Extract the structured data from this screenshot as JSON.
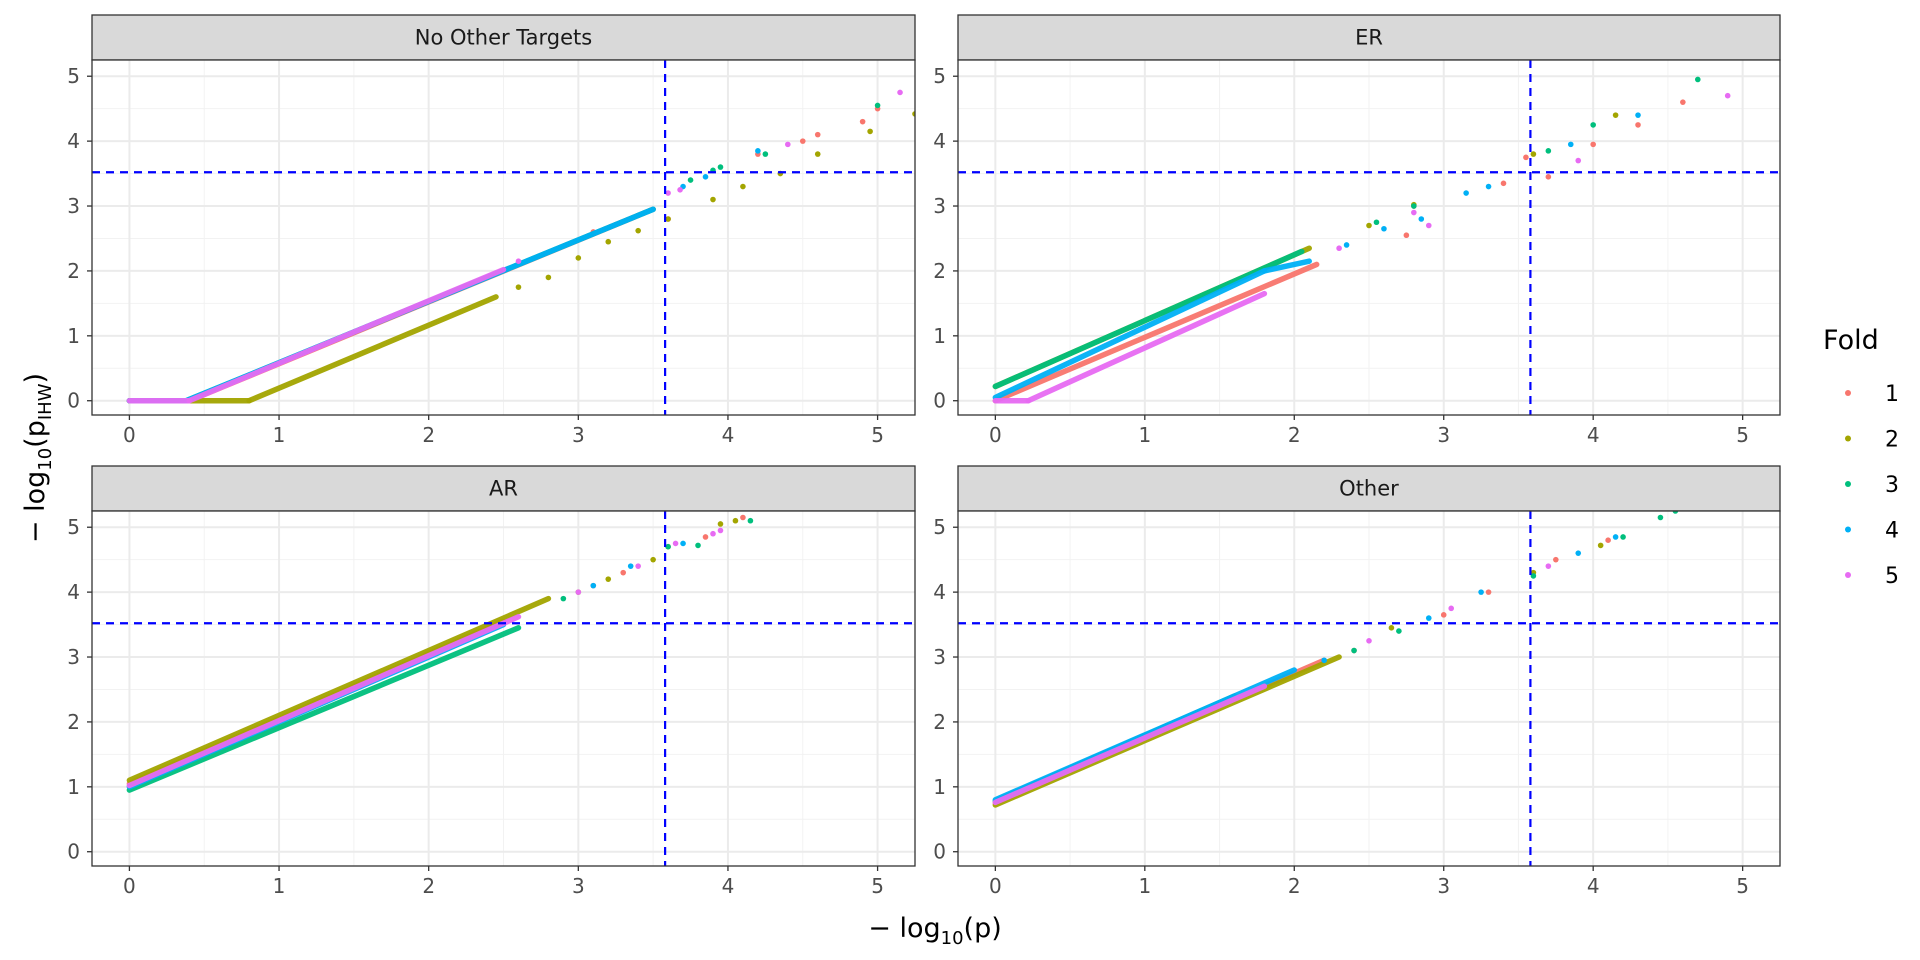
{
  "figure": {
    "xlabel_prefix": "− log",
    "xlabel_sub": "10",
    "xlabel_arg": "(p)",
    "ylabel_prefix": "− log",
    "ylabel_sub": "10",
    "ylabel_arg_open": "(p",
    "ylabel_arg_sub": "IHW",
    "ylabel_arg_close": ")"
  },
  "legend": {
    "title": "Fold",
    "items": [
      {
        "label": "1",
        "color": "#F8766D"
      },
      {
        "label": "2",
        "color": "#A3A500"
      },
      {
        "label": "3",
        "color": "#00BF7D"
      },
      {
        "label": "4",
        "color": "#00B0F6"
      },
      {
        "label": "5",
        "color": "#E76BF3"
      }
    ]
  },
  "reference_lines": {
    "color": "#0000FF",
    "style": "dashed",
    "vline_x": 3.58,
    "hline_y": 3.52
  },
  "chart_data": [
    {
      "type": "scatter",
      "title": "No Other Targets",
      "x_ticks": [
        "0",
        "1",
        "2",
        "3",
        "4",
        "5"
      ],
      "y_ticks": [
        "0",
        "1",
        "2",
        "3",
        "4",
        "5"
      ],
      "xlim": [
        -0.25,
        5.25
      ],
      "ylim": [
        -0.22,
        5.25
      ],
      "grid": true,
      "series": [
        {
          "name": "1",
          "segments": [
            [
              0,
              0,
              0.4,
              0
            ],
            [
              0.4,
              0,
              3.5,
              2.95
            ]
          ],
          "scatter": [
            [
              3.1,
              2.6
            ],
            [
              3.6,
              2.8
            ],
            [
              4.2,
              3.8
            ],
            [
              4.5,
              4.0
            ],
            [
              4.6,
              4.1
            ],
            [
              4.9,
              4.3
            ],
            [
              5.0,
              4.5
            ]
          ]
        },
        {
          "name": "2",
          "segments": [
            [
              0,
              0,
              0.8,
              0
            ],
            [
              0.8,
              0,
              2.45,
              1.6
            ]
          ],
          "scatter": [
            [
              2.6,
              1.75
            ],
            [
              2.8,
              1.9
            ],
            [
              3.0,
              2.2
            ],
            [
              3.2,
              2.45
            ],
            [
              3.4,
              2.62
            ],
            [
              3.6,
              2.8
            ],
            [
              3.9,
              3.1
            ],
            [
              4.1,
              3.3
            ],
            [
              4.35,
              3.5
            ],
            [
              4.6,
              3.8
            ],
            [
              4.95,
              4.15
            ],
            [
              5.25,
              4.42
            ]
          ]
        },
        {
          "name": "3",
          "segments": [
            [
              0,
              0,
              0.38,
              0
            ],
            [
              0.38,
              0,
              3.5,
              2.95
            ]
          ],
          "scatter": [
            [
              3.75,
              3.4
            ],
            [
              3.9,
              3.55
            ],
            [
              3.95,
              3.6
            ],
            [
              4.25,
              3.8
            ],
            [
              5.0,
              4.55
            ]
          ]
        },
        {
          "name": "4",
          "segments": [
            [
              0,
              0,
              0.38,
              0
            ],
            [
              0.38,
              0,
              3.5,
              2.95
            ]
          ],
          "scatter": [
            [
              3.7,
              3.3
            ],
            [
              3.85,
              3.45
            ],
            [
              4.2,
              3.85
            ]
          ]
        },
        {
          "name": "5",
          "segments": [
            [
              0,
              0,
              0.4,
              0
            ],
            [
              0.4,
              0,
              2.5,
              2.02
            ]
          ],
          "scatter": [
            [
              2.6,
              2.15
            ],
            [
              3.6,
              3.2
            ],
            [
              3.68,
              3.25
            ],
            [
              4.4,
              3.95
            ],
            [
              5.15,
              4.75
            ]
          ]
        }
      ]
    },
    {
      "type": "scatter",
      "title": "ER",
      "x_ticks": [
        "0",
        "1",
        "2",
        "3",
        "4",
        "5"
      ],
      "y_ticks": [
        "0",
        "1",
        "2",
        "3",
        "4",
        "5"
      ],
      "xlim": [
        -0.25,
        5.25
      ],
      "ylim": [
        -0.22,
        5.25
      ],
      "grid": true,
      "series": [
        {
          "name": "1",
          "segments": [
            [
              0,
              0,
              2.15,
              2.1
            ]
          ],
          "scatter": [
            [
              2.8,
              3.0
            ],
            [
              2.75,
              2.55
            ],
            [
              3.4,
              3.35
            ],
            [
              3.55,
              3.75
            ],
            [
              3.7,
              3.45
            ],
            [
              4.0,
              3.95
            ],
            [
              4.3,
              4.25
            ],
            [
              4.6,
              4.6
            ]
          ]
        },
        {
          "name": "2",
          "segments": [
            [
              0,
              0.22,
              2.1,
              2.35
            ]
          ],
          "scatter": [
            [
              2.5,
              2.7
            ],
            [
              2.8,
              3.02
            ],
            [
              3.6,
              3.8
            ],
            [
              4.15,
              4.4
            ]
          ]
        },
        {
          "name": "3",
          "segments": [
            [
              0,
              0.22,
              2.05,
              2.3
            ]
          ],
          "scatter": [
            [
              2.55,
              2.75
            ],
            [
              2.8,
              3.0
            ],
            [
              3.7,
              3.85
            ],
            [
              4.0,
              4.25
            ],
            [
              4.7,
              4.95
            ]
          ]
        },
        {
          "name": "4",
          "segments": [
            [
              0,
              0.05,
              1.8,
              2.0
            ],
            [
              1.8,
              2.0,
              2.1,
              2.15
            ]
          ],
          "scatter": [
            [
              2.35,
              2.4
            ],
            [
              2.6,
              2.65
            ],
            [
              2.85,
              2.8
            ],
            [
              3.15,
              3.2
            ],
            [
              3.3,
              3.3
            ],
            [
              3.85,
              3.95
            ],
            [
              4.3,
              4.4
            ]
          ]
        },
        {
          "name": "5",
          "segments": [
            [
              0,
              0,
              0.22,
              0
            ],
            [
              0.22,
              0,
              1.8,
              1.65
            ]
          ],
          "scatter": [
            [
              2.3,
              2.35
            ],
            [
              2.8,
              2.9
            ],
            [
              2.9,
              2.7
            ],
            [
              3.9,
              3.7
            ],
            [
              4.9,
              4.7
            ]
          ]
        }
      ]
    },
    {
      "type": "scatter",
      "title": "AR",
      "x_ticks": [
        "0",
        "1",
        "2",
        "3",
        "4",
        "5"
      ],
      "y_ticks": [
        "0",
        "1",
        "2",
        "3",
        "4",
        "5"
      ],
      "xlim": [
        -0.25,
        5.25
      ],
      "ylim": [
        -0.22,
        5.25
      ],
      "grid": true,
      "series": [
        {
          "name": "1",
          "segments": [
            [
              0,
              1.05,
              2.5,
              3.55
            ]
          ],
          "scatter": [
            [
              3.1,
              4.1
            ],
            [
              3.3,
              4.3
            ],
            [
              3.6,
              4.7
            ],
            [
              3.85,
              4.85
            ],
            [
              4.1,
              5.15
            ]
          ]
        },
        {
          "name": "2",
          "segments": [
            [
              0,
              1.1,
              2.8,
              3.9
            ]
          ],
          "scatter": [
            [
              3.0,
              4.0
            ],
            [
              3.2,
              4.2
            ],
            [
              3.5,
              4.5
            ],
            [
              3.95,
              5.05
            ],
            [
              4.05,
              5.1
            ]
          ]
        },
        {
          "name": "3",
          "segments": [
            [
              0,
              0.95,
              2.6,
              3.45
            ]
          ],
          "scatter": [
            [
              2.9,
              3.9
            ],
            [
              3.6,
              4.7
            ],
            [
              3.8,
              4.72
            ],
            [
              4.15,
              5.1
            ]
          ]
        },
        {
          "name": "4",
          "segments": [
            [
              0,
              1.0,
              2.5,
              3.5
            ]
          ],
          "scatter": [
            [
              3.1,
              4.1
            ],
            [
              3.35,
              4.4
            ],
            [
              3.7,
              4.75
            ]
          ]
        },
        {
          "name": "5",
          "segments": [
            [
              0,
              1.02,
              2.6,
              3.62
            ]
          ],
          "scatter": [
            [
              3.0,
              4.0
            ],
            [
              3.4,
              4.4
            ],
            [
              3.65,
              4.75
            ],
            [
              3.9,
              4.9
            ],
            [
              3.95,
              4.95
            ]
          ]
        }
      ]
    },
    {
      "type": "scatter",
      "title": "Other",
      "x_ticks": [
        "0",
        "1",
        "2",
        "3",
        "4",
        "5"
      ],
      "y_ticks": [
        "0",
        "1",
        "2",
        "3",
        "4",
        "5"
      ],
      "xlim": [
        -0.25,
        5.25
      ],
      "ylim": [
        -0.22,
        5.25
      ],
      "grid": true,
      "series": [
        {
          "name": "1",
          "segments": [
            [
              0,
              0.75,
              2.2,
              2.95
            ]
          ],
          "scatter": [
            [
              2.4,
              3.1
            ],
            [
              3.0,
              3.65
            ],
            [
              3.3,
              4.0
            ],
            [
              3.75,
              4.5
            ],
            [
              4.1,
              4.8
            ]
          ]
        },
        {
          "name": "2",
          "segments": [
            [
              0,
              0.72,
              2.3,
              3.0
            ]
          ],
          "scatter": [
            [
              2.65,
              3.45
            ],
            [
              3.6,
              4.3
            ],
            [
              4.05,
              4.72
            ]
          ]
        },
        {
          "name": "3",
          "segments": [
            [
              0,
              0.78,
              1.6,
              2.4
            ]
          ],
          "scatter": [
            [
              2.4,
              3.1
            ],
            [
              2.7,
              3.4
            ],
            [
              3.6,
              4.25
            ],
            [
              4.2,
              4.85
            ],
            [
              4.45,
              5.15
            ],
            [
              4.55,
              5.25
            ]
          ]
        },
        {
          "name": "4",
          "segments": [
            [
              0,
              0.8,
              2.0,
              2.8
            ]
          ],
          "scatter": [
            [
              2.2,
              2.95
            ],
            [
              2.9,
              3.6
            ],
            [
              3.25,
              4.0
            ],
            [
              3.9,
              4.6
            ],
            [
              4.15,
              4.85
            ]
          ]
        },
        {
          "name": "5",
          "segments": [
            [
              0,
              0.76,
              1.8,
              2.55
            ]
          ],
          "scatter": [
            [
              2.5,
              3.25
            ],
            [
              3.05,
              3.75
            ],
            [
              3.7,
              4.4
            ]
          ]
        }
      ]
    }
  ]
}
